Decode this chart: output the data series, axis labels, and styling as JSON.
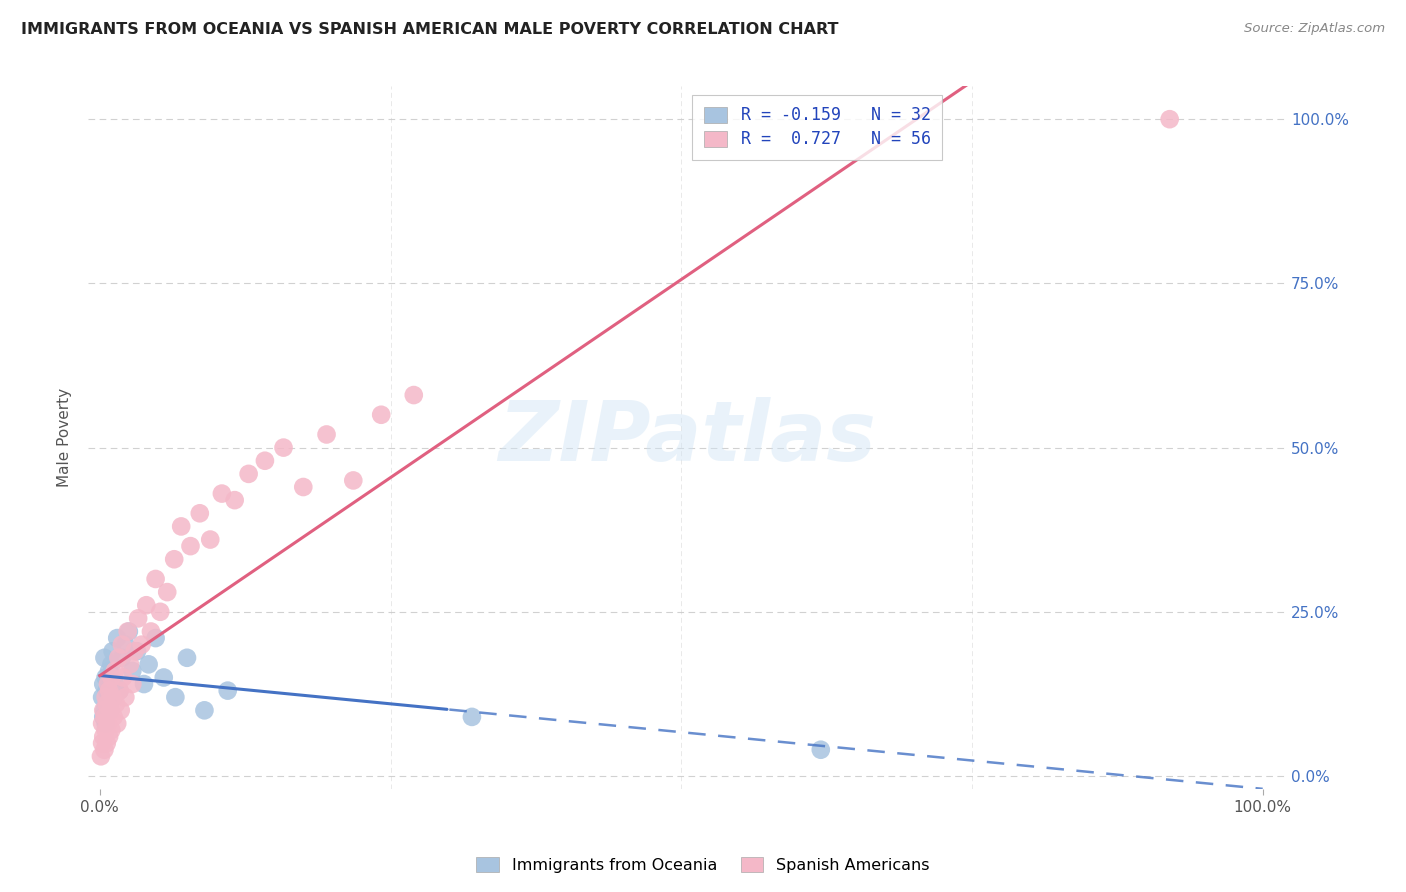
{
  "title": "IMMIGRANTS FROM OCEANIA VS SPANISH AMERICAN MALE POVERTY CORRELATION CHART",
  "source": "Source: ZipAtlas.com",
  "ylabel": "Male Poverty",
  "yticks_labels": [
    "0.0%",
    "25.0%",
    "50.0%",
    "75.0%",
    "100.0%"
  ],
  "ytick_vals": [
    0.0,
    0.25,
    0.5,
    0.75,
    1.0
  ],
  "xticks_labels": [
    "0.0%",
    "100.0%"
  ],
  "xtick_vals": [
    0.0,
    1.0
  ],
  "xlim": [
    0.0,
    1.0
  ],
  "ylim": [
    0.0,
    1.0
  ],
  "background_color": "#ffffff",
  "grid_color": "#cccccc",
  "watermark_text": "ZIPatlas",
  "series": [
    {
      "name": "Immigrants from Oceania",
      "R": -0.159,
      "N": 32,
      "color": "#a8c4e0",
      "line_color": "#4472c4",
      "line_solid_end": 0.3,
      "x": [
        0.002,
        0.003,
        0.003,
        0.004,
        0.004,
        0.005,
        0.005,
        0.006,
        0.007,
        0.008,
        0.009,
        0.01,
        0.011,
        0.012,
        0.013,
        0.015,
        0.017,
        0.019,
        0.022,
        0.025,
        0.028,
        0.032,
        0.038,
        0.042,
        0.048,
        0.055,
        0.065,
        0.075,
        0.09,
        0.11,
        0.32,
        0.62
      ],
      "y": [
        0.12,
        0.09,
        0.14,
        0.1,
        0.18,
        0.08,
        0.15,
        0.13,
        0.11,
        0.16,
        0.1,
        0.17,
        0.19,
        0.12,
        0.14,
        0.21,
        0.13,
        0.18,
        0.2,
        0.22,
        0.16,
        0.19,
        0.14,
        0.17,
        0.21,
        0.15,
        0.12,
        0.18,
        0.1,
        0.13,
        0.09,
        0.04
      ]
    },
    {
      "name": "Spanish Americans",
      "R": 0.727,
      "N": 56,
      "color": "#f4b8c8",
      "line_color": "#e06080",
      "x": [
        0.001,
        0.002,
        0.002,
        0.003,
        0.003,
        0.004,
        0.004,
        0.005,
        0.005,
        0.006,
        0.006,
        0.007,
        0.007,
        0.008,
        0.008,
        0.009,
        0.01,
        0.01,
        0.011,
        0.012,
        0.013,
        0.014,
        0.015,
        0.016,
        0.017,
        0.018,
        0.019,
        0.02,
        0.022,
        0.024,
        0.026,
        0.028,
        0.03,
        0.033,
        0.036,
        0.04,
        0.044,
        0.048,
        0.052,
        0.058,
        0.064,
        0.07,
        0.078,
        0.086,
        0.095,
        0.105,
        0.116,
        0.128,
        0.142,
        0.158,
        0.175,
        0.195,
        0.218,
        0.242,
        0.27,
        0.92
      ],
      "y": [
        0.03,
        0.05,
        0.08,
        0.06,
        0.1,
        0.04,
        0.09,
        0.07,
        0.12,
        0.05,
        0.11,
        0.08,
        0.14,
        0.06,
        0.13,
        0.1,
        0.07,
        0.15,
        0.12,
        0.09,
        0.16,
        0.11,
        0.08,
        0.18,
        0.13,
        0.1,
        0.2,
        0.15,
        0.12,
        0.22,
        0.17,
        0.14,
        0.19,
        0.24,
        0.2,
        0.26,
        0.22,
        0.3,
        0.25,
        0.28,
        0.33,
        0.38,
        0.35,
        0.4,
        0.36,
        0.43,
        0.42,
        0.46,
        0.48,
        0.5,
        0.44,
        0.52,
        0.45,
        0.55,
        0.58,
        1.0
      ]
    }
  ],
  "legend_R_entries": [
    {
      "label_r": "R = -0.159",
      "label_n": "N = 32",
      "color": "#a8c4e0"
    },
    {
      "label_r": "R =  0.727",
      "label_n": "N = 56",
      "color": "#f4b8c8"
    }
  ],
  "bottom_legend": [
    {
      "label": "Immigrants from Oceania",
      "color": "#a8c4e0"
    },
    {
      "label": "Spanish Americans",
      "color": "#f4b8c8"
    }
  ]
}
